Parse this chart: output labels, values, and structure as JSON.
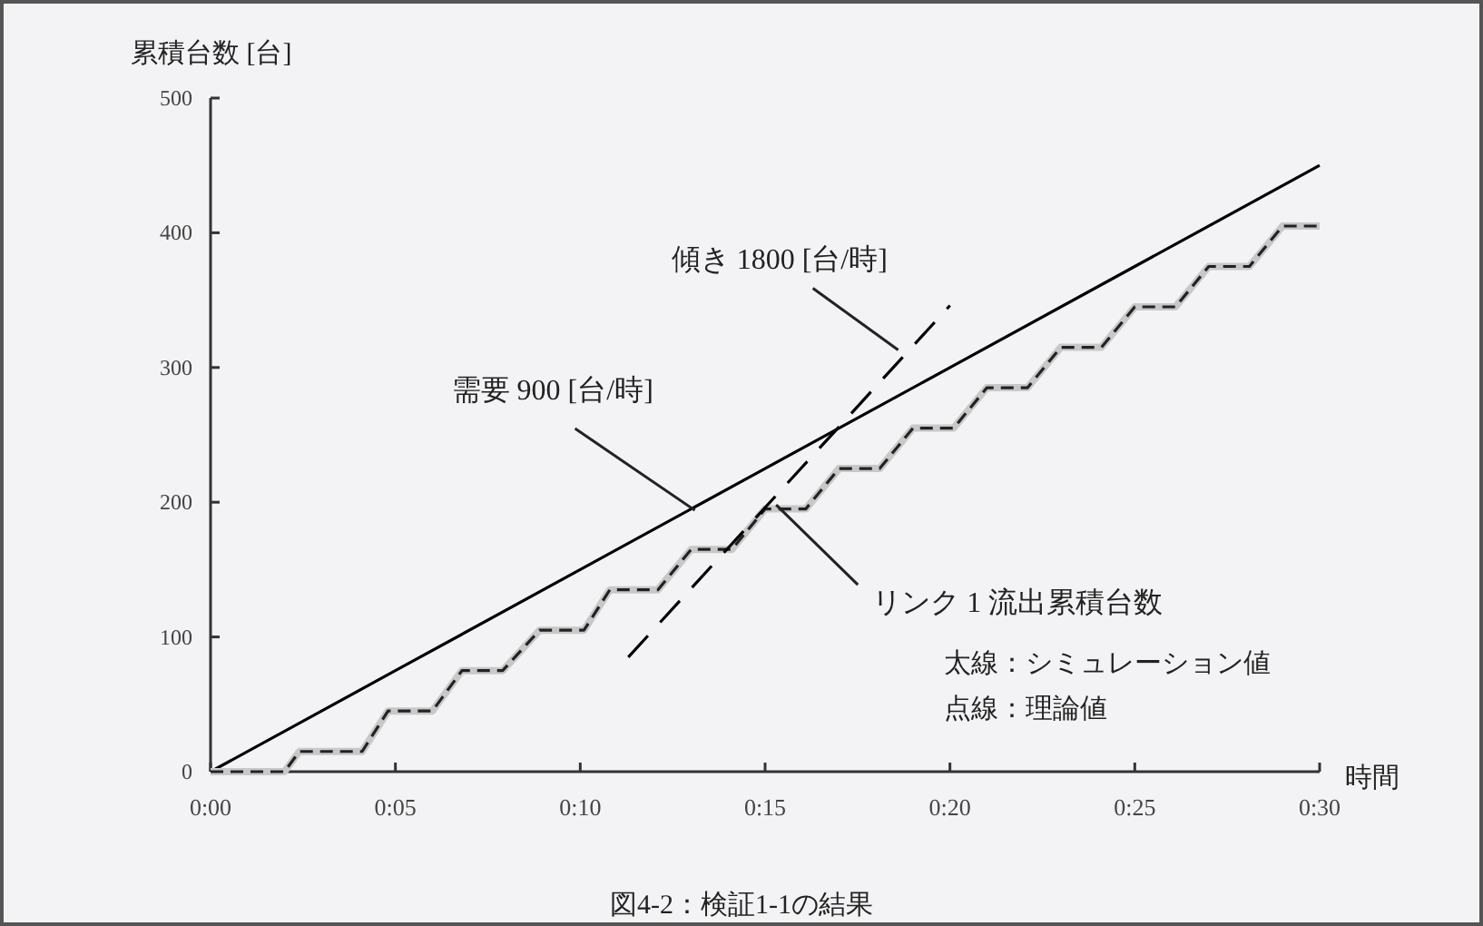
{
  "chart_data": {
    "type": "line",
    "title": "図4-2：検証1-1の結果",
    "xlabel": "時間",
    "ylabel": "累積台数 [台]",
    "xlim": [
      0,
      30
    ],
    "ylim": [
      0,
      500
    ],
    "xticks": [
      {
        "value": 0,
        "label": "0:00"
      },
      {
        "value": 5,
        "label": "0:05"
      },
      {
        "value": 10,
        "label": "0:10"
      },
      {
        "value": 15,
        "label": "0:15"
      },
      {
        "value": 20,
        "label": "0:20"
      },
      {
        "value": 25,
        "label": "0:25"
      },
      {
        "value": 30,
        "label": "0:30"
      }
    ],
    "yticks": [
      0,
      100,
      200,
      300,
      400,
      500
    ],
    "grid": false,
    "marker": "none",
    "series": [
      {
        "color": "#000000",
        "line_style": "solid",
        "x": [
          0,
          5,
          10,
          15,
          20,
          25,
          30
        ],
        "values": [
          0,
          75,
          150,
          225,
          300,
          375,
          450
        ]
      },
      {
        "color": "#c8c8c8",
        "line_style": "solid",
        "x": [
          0,
          2,
          2.4,
          4.1,
          4.8,
          6.0,
          6.8,
          7.9,
          8.9,
          10.1,
          10.8,
          12.1,
          13.0,
          14.1,
          15.0,
          16.1,
          17.0,
          18.1,
          19.0,
          20.1,
          21.0,
          22.1,
          23.0,
          24.1,
          25.0,
          26.1,
          27.0,
          28.1,
          29.0,
          30
        ],
        "values": [
          0,
          0,
          15,
          15,
          45,
          45,
          75,
          75,
          105,
          105,
          135,
          135,
          165,
          165,
          195,
          195,
          225,
          225,
          255,
          255,
          285,
          285,
          315,
          315,
          345,
          345,
          375,
          375,
          405,
          405
        ]
      },
      {
        "color": "#222222",
        "line_style": "dashed",
        "x": [
          0,
          2,
          2.4,
          4.1,
          4.8,
          6.0,
          6.8,
          7.9,
          8.9,
          10.1,
          10.8,
          12.1,
          13.0,
          14.1,
          15.0,
          16.1,
          17.0,
          18.1,
          19.0,
          20.1,
          21.0,
          22.1,
          23.0,
          24.1,
          25.0,
          26.1,
          27.0,
          28.1,
          29.0,
          30
        ],
        "values": [
          0,
          0,
          15,
          15,
          45,
          45,
          75,
          75,
          105,
          105,
          135,
          135,
          165,
          165,
          195,
          195,
          225,
          225,
          255,
          255,
          285,
          285,
          315,
          315,
          345,
          345,
          375,
          375,
          405,
          405
        ]
      },
      {
        "color": "#000000",
        "line_style": "dashed",
        "x": [
          11.3,
          20
        ],
        "values": [
          85,
          346
        ]
      }
    ],
    "annotations": [
      {
        "text": "需要 900 [台/時]",
        "x": 13.1,
        "y": 194
      },
      {
        "text": "傾き 1800 [台/時]",
        "x": 18.6,
        "y": 313
      },
      {
        "text": "リンク 1 流出累積台数",
        "x": 15.3,
        "y": 198
      },
      "太線：シミュレーション値",
      "点線：理論値"
    ]
  }
}
